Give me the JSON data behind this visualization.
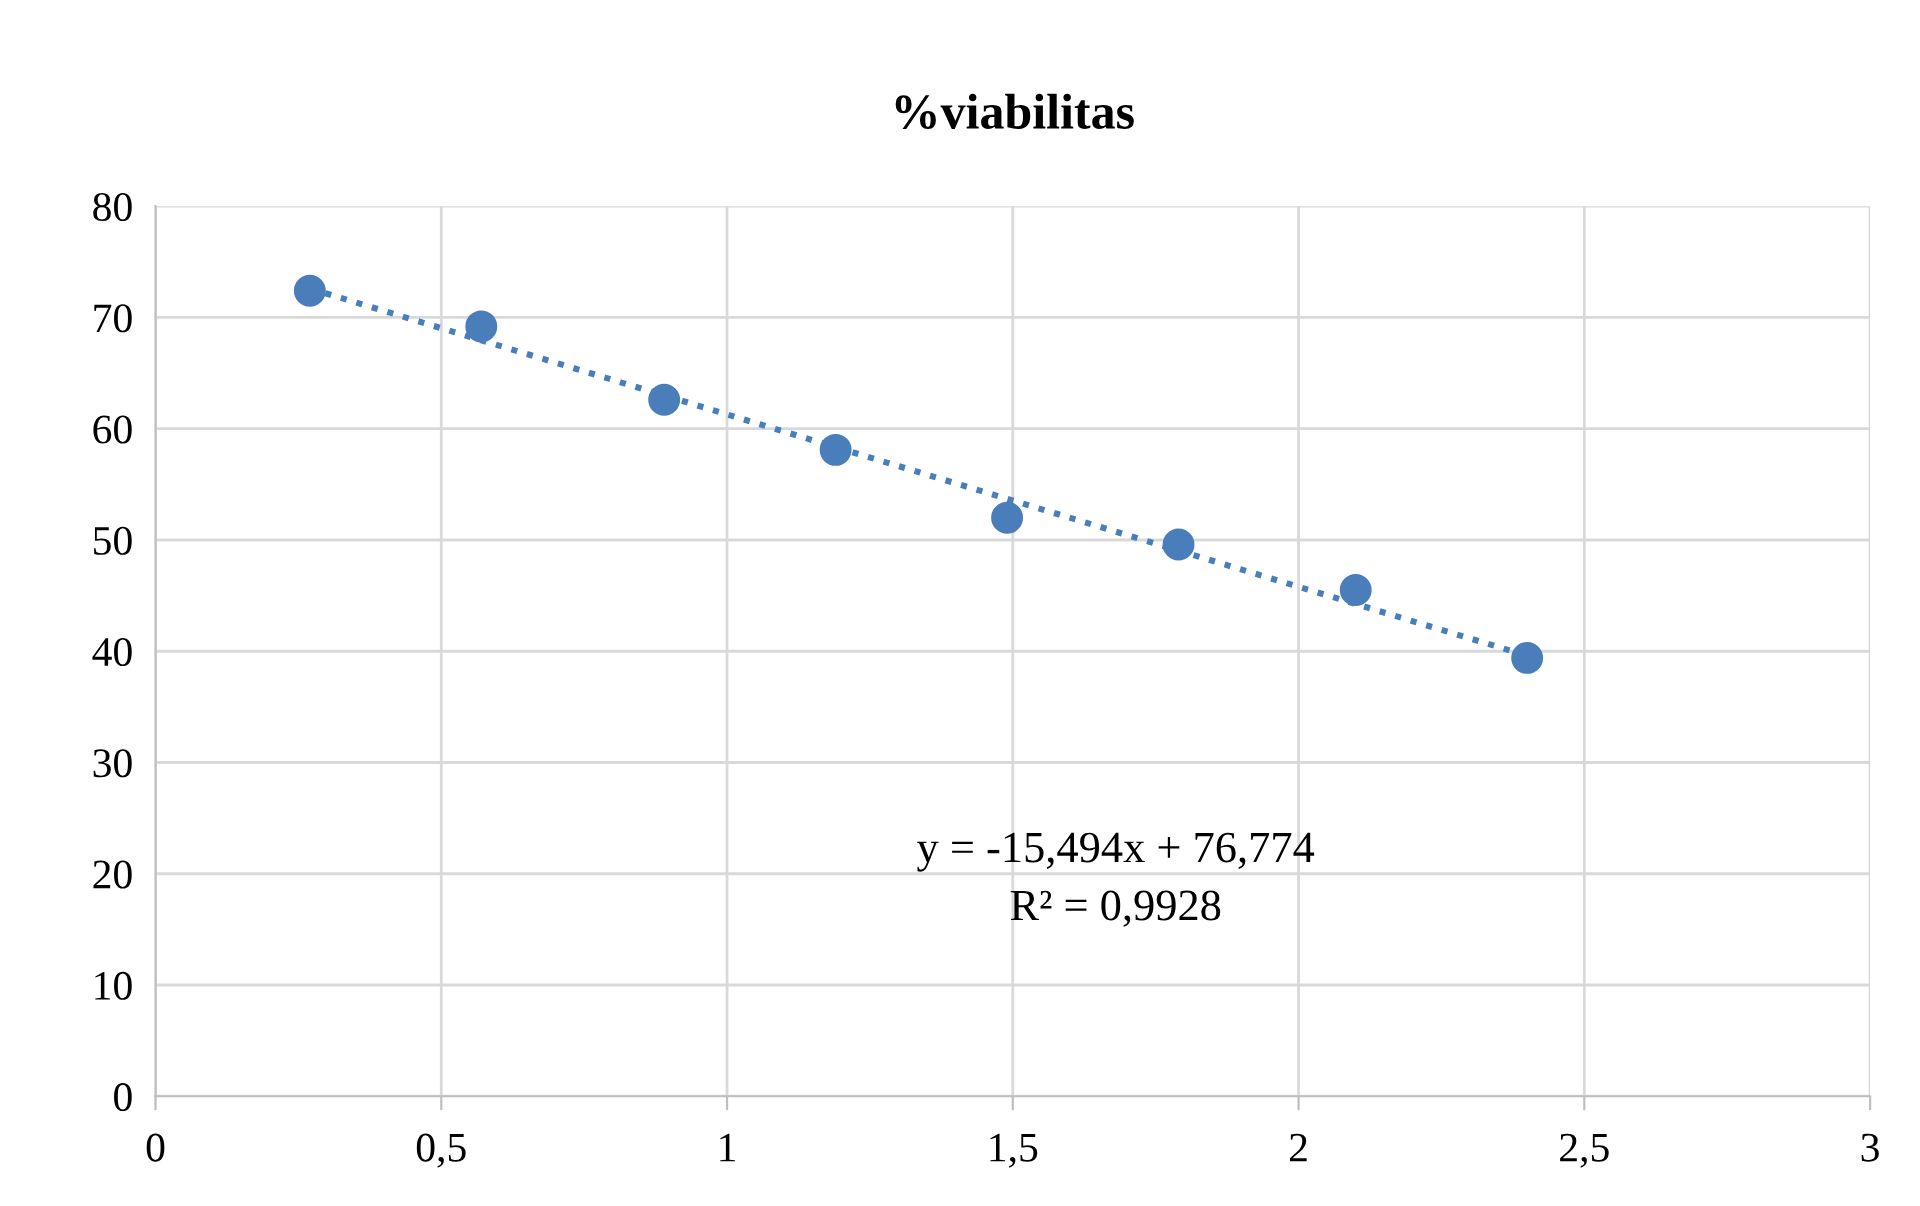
{
  "chart_data": {
    "type": "scatter",
    "title": "%viabilitas",
    "series": [
      {
        "color": "#4a7ebb",
        "marker": "circle",
        "x": [
          0.27,
          0.57,
          0.89,
          1.19,
          1.49,
          1.79,
          2.1,
          2.4
        ],
        "values": [
          72.4,
          69.2,
          62.6,
          58.1,
          52.0,
          49.6,
          45.5,
          39.4
        ]
      },
      {
        "type": "line",
        "color": "#4a7ebb",
        "line_style": "dotted",
        "marker": "none",
        "x": [
          0.27,
          2.4
        ],
        "values": [
          72.6,
          39.6
        ]
      }
    ],
    "xlim": [
      0,
      3
    ],
    "xticks": [
      0,
      {
        "value": 0.5,
        "label": "0,5"
      },
      1,
      {
        "value": 1.5,
        "label": "1,5"
      },
      2,
      {
        "value": 2.5,
        "label": "2,5"
      },
      3
    ],
    "ylim": [
      0,
      80
    ],
    "yticks": [
      0,
      10,
      20,
      30,
      40,
      50,
      60,
      70,
      80
    ],
    "grid": true,
    "annotations": [
      "y = -15,494x + 76,774",
      "R² = 0,9928"
    ]
  }
}
